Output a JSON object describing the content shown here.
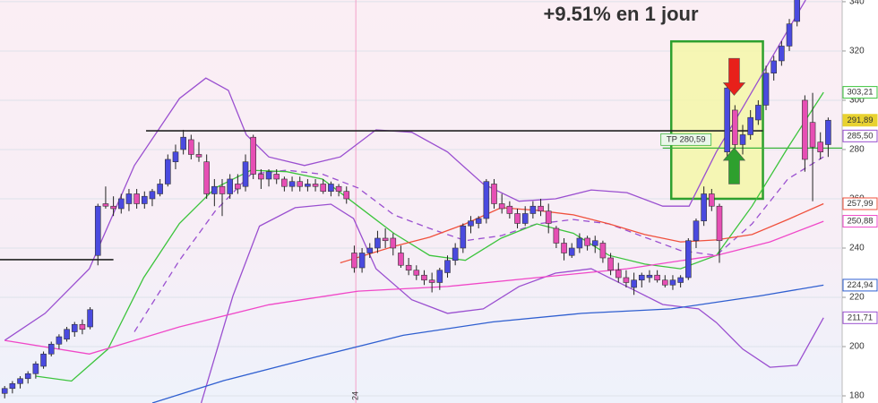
{
  "chart_data": {
    "type": "candlestick",
    "xlim": [
      -0.6,
      107.8
    ],
    "ylim": [
      177.1,
      340.7
    ],
    "yticks": [
      180,
      200,
      220,
      240,
      260,
      280,
      300,
      320,
      340
    ],
    "grid": true,
    "up_color": "#4a4adf",
    "down_color": "#e64fb4",
    "candles": [
      [
        181,
        184,
        179,
        183
      ],
      [
        183,
        186,
        181,
        185
      ],
      [
        185,
        188,
        183,
        187
      ],
      [
        187,
        190,
        185,
        189
      ],
      [
        189,
        194,
        187,
        193
      ],
      [
        192,
        198,
        191,
        197
      ],
      [
        197,
        202,
        196,
        201
      ],
      [
        201,
        205,
        199,
        204
      ],
      [
        203,
        208,
        202,
        207
      ],
      [
        206,
        210,
        204,
        209
      ],
      [
        209,
        211,
        205,
        207
      ],
      [
        208,
        216,
        207,
        215
      ],
      [
        237,
        258,
        233,
        257
      ],
      [
        258,
        265,
        256,
        257
      ],
      [
        257,
        261,
        253,
        256
      ],
      [
        256,
        262,
        254,
        260
      ],
      [
        258,
        264,
        255,
        262
      ],
      [
        262,
        264,
        256,
        258
      ],
      [
        258,
        263,
        256,
        261
      ],
      [
        260,
        264,
        257,
        263
      ],
      [
        262,
        268,
        261,
        266
      ],
      [
        266,
        278,
        265,
        276
      ],
      [
        275,
        282,
        272,
        279
      ],
      [
        280,
        288,
        278,
        285
      ],
      [
        284,
        286,
        276,
        278
      ],
      [
        278,
        283,
        275,
        277
      ],
      [
        275,
        278,
        260,
        262
      ],
      [
        262,
        268,
        257,
        265
      ],
      [
        265,
        268,
        253,
        262
      ],
      [
        262,
        270,
        260,
        268
      ],
      [
        266,
        270,
        262,
        264
      ],
      [
        265,
        278,
        263,
        275
      ],
      [
        285,
        286,
        268,
        270
      ],
      [
        270,
        272,
        264,
        268
      ],
      [
        268,
        272,
        265,
        271
      ],
      [
        270,
        272,
        266,
        268
      ],
      [
        268,
        269,
        263,
        265
      ],
      [
        265,
        269,
        263,
        267
      ],
      [
        267,
        269,
        263,
        265
      ],
      [
        265,
        268,
        263,
        266
      ],
      [
        266,
        268,
        263,
        265
      ],
      [
        266,
        268,
        262,
        263
      ],
      [
        263,
        267,
        261,
        266
      ],
      [
        265,
        266,
        261,
        263
      ],
      [
        263,
        265,
        258,
        260
      ],
      [
        238,
        241,
        230,
        232
      ],
      [
        232,
        240,
        230,
        238
      ],
      [
        238,
        242,
        236,
        240
      ],
      [
        240,
        247,
        238,
        244
      ],
      [
        244,
        248,
        240,
        243
      ],
      [
        244,
        246,
        237,
        240
      ],
      [
        238,
        241,
        232,
        233
      ],
      [
        233,
        236,
        229,
        231
      ],
      [
        231,
        233,
        227,
        229
      ],
      [
        229,
        231,
        225,
        227
      ],
      [
        227,
        230,
        222,
        226
      ],
      [
        226,
        232,
        223,
        231
      ],
      [
        230,
        237,
        228,
        235
      ],
      [
        235,
        242,
        233,
        240
      ],
      [
        240,
        250,
        238,
        249
      ],
      [
        249,
        253,
        246,
        251
      ],
      [
        250,
        253,
        248,
        252
      ],
      [
        252,
        268,
        250,
        267
      ],
      [
        266,
        268,
        256,
        258
      ],
      [
        258,
        262,
        254,
        256
      ],
      [
        257,
        259,
        252,
        254
      ],
      [
        254,
        256,
        248,
        250
      ],
      [
        250,
        257,
        249,
        254
      ],
      [
        254,
        259,
        252,
        257
      ],
      [
        257,
        260,
        253,
        255
      ],
      [
        255,
        258,
        246,
        250
      ],
      [
        248,
        249,
        240,
        242
      ],
      [
        242,
        244,
        235,
        238
      ],
      [
        237,
        242,
        236,
        240
      ],
      [
        240,
        246,
        238,
        244
      ],
      [
        244,
        245,
        239,
        241
      ],
      [
        241,
        245,
        238,
        243
      ],
      [
        242,
        243,
        234,
        236
      ],
      [
        236,
        238,
        229,
        231
      ],
      [
        231,
        234,
        226,
        228
      ],
      [
        228,
        231,
        224,
        226
      ],
      [
        224,
        230,
        221,
        227
      ],
      [
        227,
        230,
        224,
        229
      ],
      [
        228,
        231,
        226,
        229
      ],
      [
        229,
        231,
        226,
        227
      ],
      [
        227,
        229,
        224,
        225
      ],
      [
        225,
        229,
        223,
        227
      ],
      [
        226,
        229,
        224,
        228
      ],
      [
        228,
        244,
        227,
        243
      ],
      [
        243,
        252,
        240,
        251
      ],
      [
        251,
        265,
        249,
        262
      ],
      [
        262,
        264,
        255,
        257
      ],
      [
        257,
        258,
        234,
        243
      ],
      [
        279,
        306,
        277,
        305
      ],
      [
        296,
        298,
        279,
        282
      ],
      [
        282,
        290,
        278,
        286
      ],
      [
        286,
        296,
        284,
        293
      ],
      [
        292,
        300,
        290,
        298
      ],
      [
        298,
        314,
        296,
        311
      ],
      [
        311,
        318,
        308,
        316
      ],
      [
        316,
        324,
        314,
        322
      ],
      [
        322,
        333,
        320,
        331
      ],
      [
        332,
        345,
        330,
        343
      ],
      [
        300,
        302,
        271,
        276
      ],
      [
        291,
        303,
        259,
        281
      ],
      [
        283,
        287,
        276,
        279
      ],
      [
        282,
        293,
        277,
        291.89
      ]
    ],
    "lines": [
      {
        "color": "#9a4fd0",
        "dash": false,
        "x": [
          0,
          5.2,
          10.9,
          16.7,
          22.5,
          25.9,
          28.8,
          31.1,
          34,
          38.6,
          43.2,
          47.8,
          52.4,
          57,
          61.6,
          66.2,
          70.9,
          75.5,
          80.1,
          84.7,
          88.1,
          91.6,
          95,
          99.7,
          103.1
        ],
        "values": [
          202.5,
          213.5,
          231.6,
          273.5,
          300.7,
          309,
          304,
          286,
          277,
          273.5,
          277,
          288,
          287,
          279,
          266,
          259,
          260,
          263.6,
          262.5,
          257,
          257,
          279,
          297,
          322.5,
          340.7
        ]
      },
      {
        "color": "#9a4fd0",
        "dash": false,
        "x": [
          25.3,
          29.4,
          32.8,
          37.4,
          42,
          44.9,
          47.8,
          52.4,
          57,
          61.6,
          66.2,
          70.9,
          75.5,
          80.1,
          84.7,
          89.3,
          91.6,
          95,
          98.5,
          102,
          105.4
        ],
        "values": [
          177.1,
          220.7,
          248.9,
          256.4,
          257.8,
          252,
          231.6,
          219,
          213.5,
          215.3,
          224.4,
          229.8,
          231.6,
          224.4,
          217.1,
          215.3,
          209.8,
          199,
          191.6,
          192.4,
          211.71
        ]
      },
      {
        "color": "#9a4fd0",
        "dash": true,
        "x": [
          16.7,
          22.5,
          27.1,
          31.7,
          36.3,
          40.9,
          45.5,
          50.1,
          54.7,
          59.3,
          63.9,
          68.5,
          73.2,
          77.8,
          82.4,
          87,
          91.6,
          96.2,
          100.8,
          105.4
        ],
        "values": [
          206,
          235,
          255,
          270,
          271.6,
          270,
          264.4,
          253.5,
          248,
          243,
          245,
          249.8,
          251.6,
          249.8,
          244.4,
          239,
          237,
          249.8,
          268,
          277
        ]
      },
      {
        "color": "#3cc43c",
        "dash": false,
        "x": [
          4,
          8.6,
          13.3,
          17.9,
          22.5,
          27.1,
          31.7,
          36.3,
          40.9,
          45.5,
          50.1,
          54.7,
          59.3,
          63.9,
          68.5,
          73.2,
          77.8,
          82.4,
          87,
          91.6,
          96.2,
          100.8,
          105.4
        ],
        "values": [
          188,
          186,
          199,
          228,
          250,
          264.4,
          271.6,
          271,
          268,
          257,
          246,
          237,
          235,
          244,
          249.8,
          246,
          237,
          233.5,
          231.6,
          237,
          257,
          280.7,
          303.21
        ]
      },
      {
        "color": "#f0503c",
        "dash": false,
        "x": [
          43.2,
          50.1,
          54.7,
          59.3,
          63.9,
          68.5,
          73.2,
          77.8,
          82.4,
          87,
          91.6,
          96.2,
          100.8,
          105.4
        ],
        "values": [
          234,
          240.7,
          244.4,
          249.8,
          256.4,
          255.3,
          253.5,
          249.8,
          245.5,
          242.5,
          243.3,
          245.5,
          251.6,
          257.99
        ]
      },
      {
        "color": "#f048c8",
        "dash": false,
        "x": [
          0,
          10.9,
          22.5,
          34,
          45.5,
          57,
          68.5,
          80.1,
          91.6,
          98.5,
          105.4
        ],
        "values": [
          202.5,
          197,
          208,
          217,
          222.5,
          224.4,
          228,
          231.6,
          237,
          242.5,
          250.88
        ]
      },
      {
        "color": "#2f5fd0",
        "dash": false,
        "x": [
          19,
          28.2,
          39.7,
          51.3,
          62.8,
          74.3,
          85.8,
          97.4,
          105.4
        ],
        "values": [
          177.1,
          186.2,
          195.5,
          204.6,
          210,
          213.5,
          215.3,
          220.7,
          224.94
        ]
      }
    ],
    "levels": [
      {
        "value": 287.6,
        "x": [
          18.2,
          97.6
        ],
        "color": "#222"
      },
      {
        "value": 235.3,
        "x": [
          -0.6,
          14
        ],
        "color": "#222"
      }
    ],
    "tp": {
      "value": 280.59,
      "label": "TP 280,59",
      "x": [
        84.7,
        107.8
      ],
      "color": "#3cb43c"
    },
    "box": {
      "x": [
        85.8,
        97.6
      ],
      "y": [
        260,
        323.9
      ],
      "color": "#2ea02e"
    },
    "arrows": [
      {
        "x": 93.9,
        "from": 317,
        "to": 302,
        "color": "#e8201a"
      },
      {
        "x": 93.9,
        "from": 266,
        "to": 280.7,
        "color": "#2ea02e"
      }
    ],
    "marker": {
      "x": 45.2,
      "label": "24",
      "color": "#f4a0c8"
    },
    "annotation": {
      "text": "+9.51% en 1 jour",
      "color": "#3cb43c"
    },
    "price_tags": [
      {
        "value": 303.21,
        "label": "303,21",
        "color": "#3cc43c"
      },
      {
        "value": 291.89,
        "label": "291,89",
        "color": "#e8d230"
      },
      {
        "value": 285.5,
        "label": "285,50",
        "color": "#9a4fd0"
      },
      {
        "value": 257.99,
        "label": "257,99",
        "color": "#f0503c"
      },
      {
        "value": 250.88,
        "label": "250,88",
        "color": "#f048c8"
      },
      {
        "value": 224.94,
        "label": "224,94",
        "color": "#2f5fd0"
      },
      {
        "value": 211.71,
        "label": "211,71",
        "color": "#9a4fd0"
      }
    ]
  }
}
